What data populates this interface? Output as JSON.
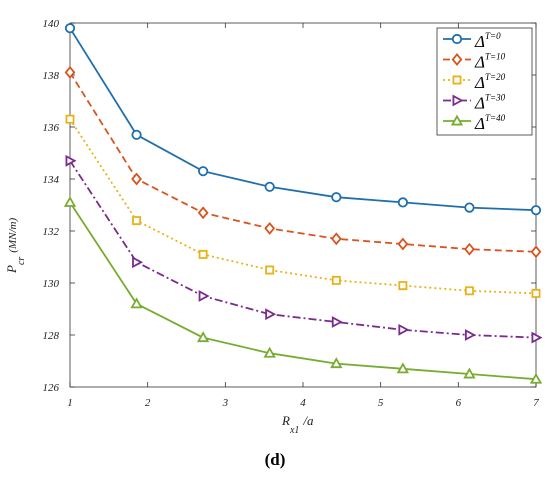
{
  "chart_data": {
    "type": "line",
    "x": [
      1,
      1.857,
      2.714,
      3.571,
      4.429,
      5.286,
      6.143,
      7
    ],
    "xticks": [
      1,
      2,
      3,
      4,
      5,
      6,
      7
    ],
    "yticks": [
      126,
      128,
      130,
      132,
      134,
      136,
      138,
      140
    ],
    "xlim": [
      1,
      7
    ],
    "ylim": [
      126,
      140
    ],
    "grid": false,
    "legend_position": "top-right",
    "xlabel": {
      "main": "R",
      "sub": "x1",
      "tail": "/a"
    },
    "ylabel": {
      "main": "P",
      "sub": "cr",
      "tail": "(MN/m)"
    },
    "series": [
      {
        "name": "T=0",
        "legend_main": "Δ",
        "legend_sup": "T=0",
        "color": "#1f6fad",
        "dash": "",
        "marker": "circle",
        "values": [
          139.8,
          135.7,
          134.3,
          133.7,
          133.3,
          133.1,
          132.9,
          132.8
        ]
      },
      {
        "name": "T=10",
        "legend_main": "Δ",
        "legend_sup": "T=10",
        "color": "#d9541e",
        "dash": "7,4",
        "marker": "diamond",
        "values": [
          138.1,
          134.0,
          132.7,
          132.1,
          131.7,
          131.5,
          131.3,
          131.2
        ]
      },
      {
        "name": "T=20",
        "legend_main": "Δ",
        "legend_sup": "T=20",
        "color": "#e8b21a",
        "dash": "2,3",
        "marker": "square",
        "values": [
          136.3,
          132.4,
          131.1,
          130.5,
          130.1,
          129.9,
          129.7,
          129.6
        ]
      },
      {
        "name": "T=30",
        "legend_main": "Δ",
        "legend_sup": "T=30",
        "color": "#7b2b8f",
        "dash": "8,3,2,3",
        "marker": "triangle-right",
        "values": [
          134.7,
          130.8,
          129.5,
          128.8,
          128.5,
          128.2,
          128.0,
          127.9
        ]
      },
      {
        "name": "T=40",
        "legend_main": "Δ",
        "legend_sup": "T=40",
        "color": "#77ac30",
        "dash": "",
        "marker": "triangle-up",
        "values": [
          133.1,
          129.2,
          127.9,
          127.3,
          126.9,
          126.7,
          126.5,
          126.3
        ]
      }
    ]
  },
  "panel_label": "(d)"
}
